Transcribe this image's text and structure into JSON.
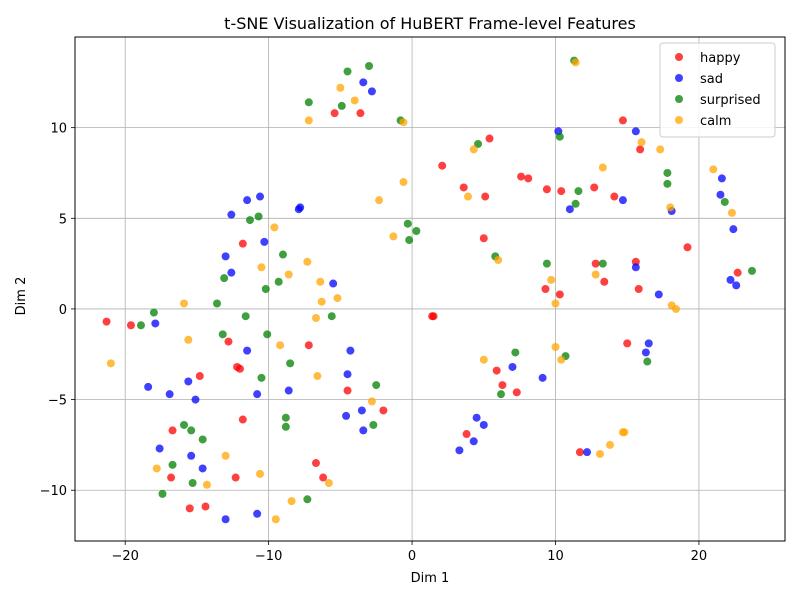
{
  "chart_data": {
    "type": "scatter",
    "title": "t-SNE Visualization of HuBERT Frame-level Features",
    "xlabel": "Dim 1",
    "ylabel": "Dim 2",
    "xlim": [
      -23.5,
      26
    ],
    "ylim": [
      -12.8,
      15
    ],
    "xticks": [
      -20,
      -10,
      0,
      10,
      20
    ],
    "yticks": [
      -10,
      -5,
      0,
      5,
      10
    ],
    "grid": true,
    "legend_position": "top-right",
    "series": [
      {
        "name": "happy",
        "color": "#ff0000",
        "points": [
          [
            -21.3,
            -0.7
          ],
          [
            -19.6,
            -0.9
          ],
          [
            -16.7,
            -6.7
          ],
          [
            -16.8,
            -9.3
          ],
          [
            -15.5,
            -11.0
          ],
          [
            -14.4,
            -10.9
          ],
          [
            -14.8,
            -3.7
          ],
          [
            -12.3,
            -9.3
          ],
          [
            -12.0,
            -3.3
          ],
          [
            -12.2,
            -3.2
          ],
          [
            -11.8,
            3.6
          ],
          [
            -11.8,
            -6.1
          ],
          [
            -12.8,
            -1.8
          ],
          [
            -6.7,
            -8.5
          ],
          [
            -6.2,
            -9.3
          ],
          [
            -7.2,
            -2.0
          ],
          [
            -5.4,
            10.8
          ],
          [
            -3.6,
            10.8
          ],
          [
            -4.5,
            -4.5
          ],
          [
            -2.0,
            -5.6
          ],
          [
            1.4,
            -0.4
          ],
          [
            1.5,
            -0.4
          ],
          [
            2.1,
            7.9
          ],
          [
            3.6,
            6.7
          ],
          [
            3.8,
            -6.9
          ],
          [
            5.0,
            3.9
          ],
          [
            5.1,
            6.2
          ],
          [
            5.4,
            9.4
          ],
          [
            5.9,
            -3.4
          ],
          [
            6.3,
            -4.2
          ],
          [
            7.3,
            -4.6
          ],
          [
            7.6,
            7.3
          ],
          [
            8.1,
            7.2
          ],
          [
            9.3,
            1.1
          ],
          [
            9.4,
            6.6
          ],
          [
            10.3,
            0.8
          ],
          [
            10.4,
            6.5
          ],
          [
            11.7,
            -7.9
          ],
          [
            12.7,
            6.7
          ],
          [
            12.8,
            2.5
          ],
          [
            13.4,
            1.5
          ],
          [
            14.1,
            6.2
          ],
          [
            14.7,
            10.4
          ],
          [
            15.0,
            -1.9
          ],
          [
            15.6,
            2.6
          ],
          [
            15.8,
            1.1
          ],
          [
            15.9,
            8.8
          ],
          [
            19.2,
            3.4
          ],
          [
            22.7,
            2.0
          ]
        ]
      },
      {
        "name": "sad",
        "color": "#0000ff",
        "points": [
          [
            -18.4,
            -4.3
          ],
          [
            -17.9,
            -0.8
          ],
          [
            -17.6,
            -7.7
          ],
          [
            -16.9,
            -4.7
          ],
          [
            -15.6,
            -4.0
          ],
          [
            -15.4,
            -8.1
          ],
          [
            -15.1,
            -5.0
          ],
          [
            -14.6,
            -8.8
          ],
          [
            -13.0,
            2.9
          ],
          [
            -12.6,
            2.0
          ],
          [
            -12.6,
            5.2
          ],
          [
            -13.0,
            -11.6
          ],
          [
            -11.5,
            6.0
          ],
          [
            -11.5,
            -2.3
          ],
          [
            -10.6,
            6.2
          ],
          [
            -10.3,
            3.7
          ],
          [
            -10.8,
            -4.7
          ],
          [
            -10.8,
            -11.3
          ],
          [
            -8.6,
            -4.5
          ],
          [
            -7.9,
            5.5
          ],
          [
            -7.8,
            5.6
          ],
          [
            -5.5,
            1.4
          ],
          [
            -4.5,
            -3.6
          ],
          [
            -4.3,
            -2.3
          ],
          [
            -4.6,
            -5.9
          ],
          [
            -3.5,
            -5.6
          ],
          [
            -3.4,
            -6.7
          ],
          [
            -3.4,
            12.5
          ],
          [
            -2.8,
            12.0
          ],
          [
            3.3,
            -7.8
          ],
          [
            4.3,
            -7.3
          ],
          [
            4.5,
            -6.0
          ],
          [
            5.0,
            -6.4
          ],
          [
            7.0,
            -3.2
          ],
          [
            9.1,
            -3.8
          ],
          [
            10.2,
            9.8
          ],
          [
            11.0,
            5.5
          ],
          [
            12.2,
            -7.9
          ],
          [
            14.7,
            6.0
          ],
          [
            15.6,
            9.8
          ],
          [
            15.6,
            2.3
          ],
          [
            16.3,
            -2.4
          ],
          [
            16.5,
            -1.9
          ],
          [
            17.2,
            0.8
          ],
          [
            18.1,
            5.4
          ],
          [
            21.6,
            7.2
          ],
          [
            21.5,
            6.3
          ],
          [
            22.2,
            1.6
          ],
          [
            22.4,
            4.4
          ],
          [
            22.6,
            1.3
          ]
        ]
      },
      {
        "name": "surprised",
        "color": "#008000",
        "points": [
          [
            -18.9,
            -0.9
          ],
          [
            -18.0,
            -0.2
          ],
          [
            -17.4,
            -10.2
          ],
          [
            -16.7,
            -8.6
          ],
          [
            -15.9,
            -6.4
          ],
          [
            -15.4,
            -6.7
          ],
          [
            -15.3,
            -9.6
          ],
          [
            -14.6,
            -7.2
          ],
          [
            -13.6,
            0.3
          ],
          [
            -13.2,
            -1.4
          ],
          [
            -13.1,
            1.7
          ],
          [
            -11.6,
            -0.4
          ],
          [
            -11.3,
            4.9
          ],
          [
            -10.7,
            5.1
          ],
          [
            -10.5,
            -3.8
          ],
          [
            -10.2,
            1.1
          ],
          [
            -10.1,
            -1.4
          ],
          [
            -9.3,
            1.5
          ],
          [
            -9.0,
            3.0
          ],
          [
            -8.8,
            -6.0
          ],
          [
            -8.8,
            -6.5
          ],
          [
            -8.5,
            -3.0
          ],
          [
            -7.2,
            11.4
          ],
          [
            -7.3,
            -10.5
          ],
          [
            -5.6,
            -0.4
          ],
          [
            -4.9,
            11.2
          ],
          [
            -4.5,
            13.1
          ],
          [
            -3.0,
            13.4
          ],
          [
            -2.7,
            -6.4
          ],
          [
            -2.5,
            -4.2
          ],
          [
            -0.8,
            10.4
          ],
          [
            -0.3,
            4.7
          ],
          [
            -0.2,
            3.8
          ],
          [
            0.3,
            4.3
          ],
          [
            4.6,
            9.1
          ],
          [
            5.8,
            2.9
          ],
          [
            6.2,
            -4.7
          ],
          [
            7.2,
            -2.4
          ],
          [
            9.4,
            2.5
          ],
          [
            10.3,
            9.5
          ],
          [
            10.7,
            -2.6
          ],
          [
            11.3,
            13.7
          ],
          [
            11.4,
            5.8
          ],
          [
            11.6,
            6.5
          ],
          [
            13.3,
            2.5
          ],
          [
            16.4,
            -2.9
          ],
          [
            17.8,
            7.5
          ],
          [
            17.8,
            6.9
          ],
          [
            21.8,
            5.9
          ],
          [
            23.7,
            2.1
          ]
        ]
      },
      {
        "name": "calm",
        "color": "#ffa500",
        "points": [
          [
            -21.0,
            -3.0
          ],
          [
            -17.8,
            -8.8
          ],
          [
            -15.9,
            0.3
          ],
          [
            -15.6,
            -1.7
          ],
          [
            -14.3,
            -9.7
          ],
          [
            -13.0,
            -8.1
          ],
          [
            -10.5,
            2.3
          ],
          [
            -10.6,
            -9.1
          ],
          [
            -9.6,
            4.5
          ],
          [
            -9.2,
            -2.0
          ],
          [
            -9.5,
            -11.6
          ],
          [
            -8.6,
            1.9
          ],
          [
            -8.4,
            -10.6
          ],
          [
            -7.3,
            2.6
          ],
          [
            -7.2,
            10.4
          ],
          [
            -6.7,
            -0.5
          ],
          [
            -6.6,
            -3.7
          ],
          [
            -6.4,
            1.5
          ],
          [
            -6.3,
            0.4
          ],
          [
            -5.8,
            -9.6
          ],
          [
            -5.2,
            0.6
          ],
          [
            -5.0,
            12.2
          ],
          [
            -4.0,
            11.5
          ],
          [
            -2.8,
            -5.1
          ],
          [
            -2.3,
            6.0
          ],
          [
            -1.3,
            4.0
          ],
          [
            -0.6,
            7.0
          ],
          [
            -0.6,
            10.3
          ],
          [
            3.9,
            6.2
          ],
          [
            4.3,
            8.8
          ],
          [
            5.0,
            -2.8
          ],
          [
            6.0,
            2.7
          ],
          [
            9.7,
            1.6
          ],
          [
            10.0,
            -2.1
          ],
          [
            10.0,
            0.3
          ],
          [
            10.4,
            -2.8
          ],
          [
            11.4,
            13.6
          ],
          [
            12.8,
            1.9
          ],
          [
            13.1,
            -8.0
          ],
          [
            13.3,
            7.8
          ],
          [
            13.8,
            -7.5
          ],
          [
            14.7,
            -6.8
          ],
          [
            14.8,
            -6.8
          ],
          [
            16.0,
            9.2
          ],
          [
            17.3,
            8.8
          ],
          [
            18.0,
            5.6
          ],
          [
            18.1,
            0.2
          ],
          [
            18.4,
            0.0
          ],
          [
            21.0,
            7.7
          ],
          [
            22.3,
            5.3
          ]
        ]
      }
    ]
  }
}
